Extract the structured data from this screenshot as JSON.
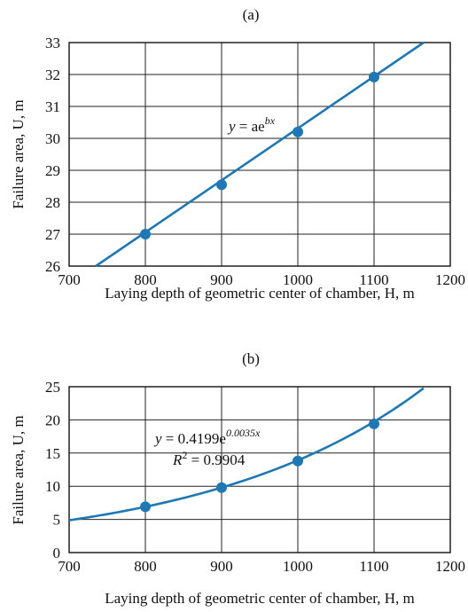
{
  "chart_data": [
    {
      "type": "line",
      "panel_label": "(a)",
      "xlabel": "Laying depth of geometric center of chamber, H, m",
      "ylabel": "Failure area, U, m",
      "xlim": [
        700,
        1200
      ],
      "ylim": [
        26,
        33
      ],
      "x_ticks": [
        700,
        800,
        900,
        1000,
        1100,
        1200
      ],
      "y_ticks": [
        26,
        27,
        28,
        29,
        30,
        31,
        32,
        33
      ],
      "grid": true,
      "points": [
        {
          "x": 800,
          "y": 27.0
        },
        {
          "x": 900,
          "y": 28.55
        },
        {
          "x": 1000,
          "y": 30.2
        },
        {
          "x": 1100,
          "y": 31.92
        }
      ],
      "fit_line": {
        "x_start": 735,
        "y_start": 26.0,
        "x_end": 1165,
        "y_end": 33.0
      },
      "equation": {
        "y_part": "y",
        "equals": " = ae",
        "exponent": "bx"
      }
    },
    {
      "type": "line",
      "panel_label": "(b)",
      "xlabel": "Laying depth of geometric center of chamber, H, m",
      "ylabel": "Failure area, U, m",
      "xlim": [
        700,
        1200
      ],
      "ylim": [
        0,
        25
      ],
      "x_ticks": [
        700,
        800,
        900,
        1000,
        1100,
        1200
      ],
      "y_ticks": [
        0,
        5,
        10,
        15,
        20,
        25
      ],
      "grid": true,
      "points": [
        {
          "x": 800,
          "y": 6.9
        },
        {
          "x": 900,
          "y": 9.8
        },
        {
          "x": 1000,
          "y": 13.8
        },
        {
          "x": 1100,
          "y": 19.4
        }
      ],
      "fit_curve": {
        "a": 0.4199,
        "b": 0.0035,
        "x_start": 700,
        "x_end": 1165
      },
      "equation": {
        "y_part": "y",
        "equals": " = 0.4199e",
        "exponent": "0.0035x"
      },
      "r_squared": {
        "r_part": "R",
        "sup": "2",
        "rest": " = 0.9904"
      }
    }
  ]
}
